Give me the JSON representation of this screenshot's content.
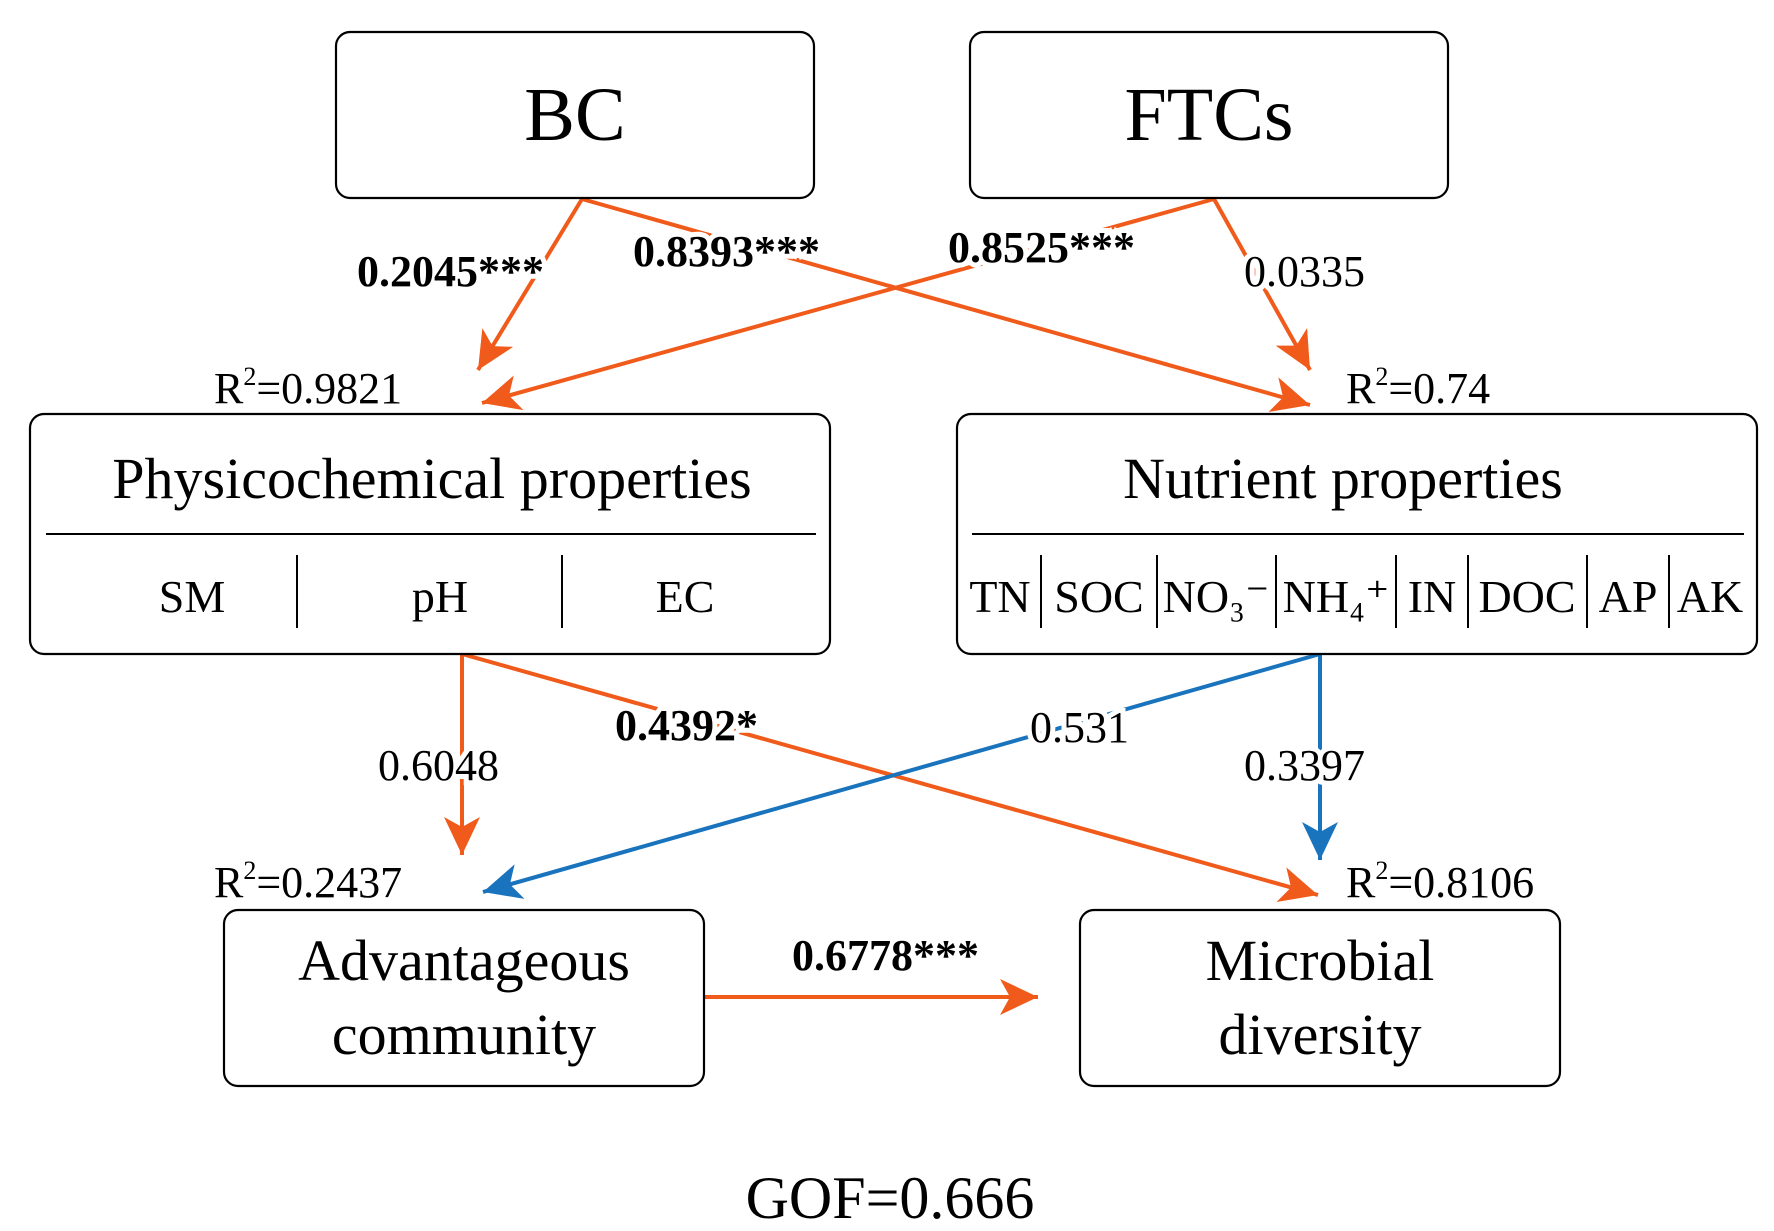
{
  "colors": {
    "positive": "#f05a1a",
    "negative": "#1a74bd",
    "border": "#000000"
  },
  "nodes": {
    "bc": {
      "label": "BC"
    },
    "ftcs": {
      "label": "FTCs"
    },
    "physico": {
      "label": "Physicochemical properties",
      "items": [
        "SM",
        "pH",
        "EC"
      ],
      "r2_prefix": "R",
      "r2_sup": "2",
      "r2_value": "=0.9821"
    },
    "nutrient": {
      "label": "Nutrient properties",
      "items": [
        "TN",
        "SOC",
        "NO₃⁻",
        "NH₄⁺",
        "IN",
        "DOC",
        "AP",
        "AK"
      ],
      "r2_prefix": "R",
      "r2_sup": "2",
      "r2_value": "=0.74"
    },
    "advantageous": {
      "label_line1": "Advantageous",
      "label_line2": "community",
      "r2_prefix": "R",
      "r2_sup": "2",
      "r2_value": "=0.2437"
    },
    "microbial": {
      "label_line1": "Microbial",
      "label_line2": "diversity",
      "r2_prefix": "R",
      "r2_sup": "2",
      "r2_value": "=0.8106"
    }
  },
  "paths": [
    {
      "from": "BC",
      "to": "Physicochemical properties",
      "coefficient": "0.2045***",
      "sign": "positive",
      "bold": true
    },
    {
      "from": "BC",
      "to": "Nutrient properties",
      "coefficient": "0.8393***",
      "sign": "positive",
      "bold": true
    },
    {
      "from": "FTCs",
      "to": "Physicochemical properties",
      "coefficient": "0.8525***",
      "sign": "positive",
      "bold": true
    },
    {
      "from": "FTCs",
      "to": "Nutrient properties",
      "coefficient": "0.0335",
      "sign": "positive",
      "bold": false
    },
    {
      "from": "Physicochemical properties",
      "to": "Advantageous community",
      "coefficient": "0.6048",
      "sign": "positive",
      "bold": false
    },
    {
      "from": "Physicochemical properties",
      "to": "Microbial diversity",
      "coefficient": "0.4392*",
      "sign": "positive",
      "bold": true
    },
    {
      "from": "Nutrient properties",
      "to": "Advantageous community",
      "coefficient": "0.531",
      "sign": "negative",
      "bold": false
    },
    {
      "from": "Nutrient properties",
      "to": "Microbial diversity",
      "coefficient": "0.3397",
      "sign": "negative",
      "bold": false
    },
    {
      "from": "Advantageous community",
      "to": "Microbial diversity",
      "coefficient": "0.6778***",
      "sign": "positive",
      "bold": true
    }
  ],
  "gof": "GOF=0.666"
}
